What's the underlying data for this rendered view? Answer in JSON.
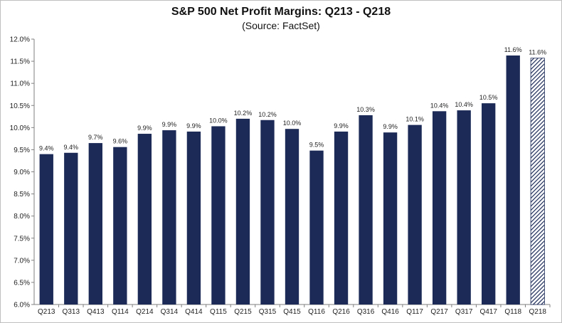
{
  "chart_data": {
    "type": "bar",
    "title": "S&P 500 Net Profit Margins: Q213 - Q218",
    "subtitle": "(Source: FactSet)",
    "xlabel": "",
    "ylabel": "",
    "ylim": [
      6.0,
      12.0
    ],
    "ytick_step": 0.5,
    "ytick_format": "percent_1dp",
    "grid": false,
    "legend": "none",
    "categories": [
      "Q213",
      "Q313",
      "Q413",
      "Q114",
      "Q214",
      "Q314",
      "Q414",
      "Q115",
      "Q215",
      "Q315",
      "Q415",
      "Q116",
      "Q216",
      "Q316",
      "Q416",
      "Q117",
      "Q217",
      "Q317",
      "Q417",
      "Q118",
      "Q218"
    ],
    "values": [
      9.4,
      9.43,
      9.65,
      9.56,
      9.86,
      9.94,
      9.91,
      10.03,
      10.2,
      10.17,
      9.97,
      9.48,
      9.91,
      10.28,
      9.89,
      10.06,
      10.37,
      10.39,
      10.55,
      11.63,
      11.57
    ],
    "data_labels": [
      "9.4%",
      "9.4%",
      "9.7%",
      "9.6%",
      "9.9%",
      "9.9%",
      "9.9%",
      "10.0%",
      "10.2%",
      "10.2%",
      "10.0%",
      "9.5%",
      "9.9%",
      "10.3%",
      "9.9%",
      "10.1%",
      "10.4%",
      "10.4%",
      "10.5%",
      "11.6%",
      "11.6%"
    ],
    "estimate_flags": [
      false,
      false,
      false,
      false,
      false,
      false,
      false,
      false,
      false,
      false,
      false,
      false,
      false,
      false,
      false,
      false,
      false,
      false,
      false,
      false,
      true
    ],
    "colors": {
      "bar": "#1b2a57",
      "estimate_stripe": "#1b2a57",
      "axis": "#7f7f7f"
    }
  }
}
